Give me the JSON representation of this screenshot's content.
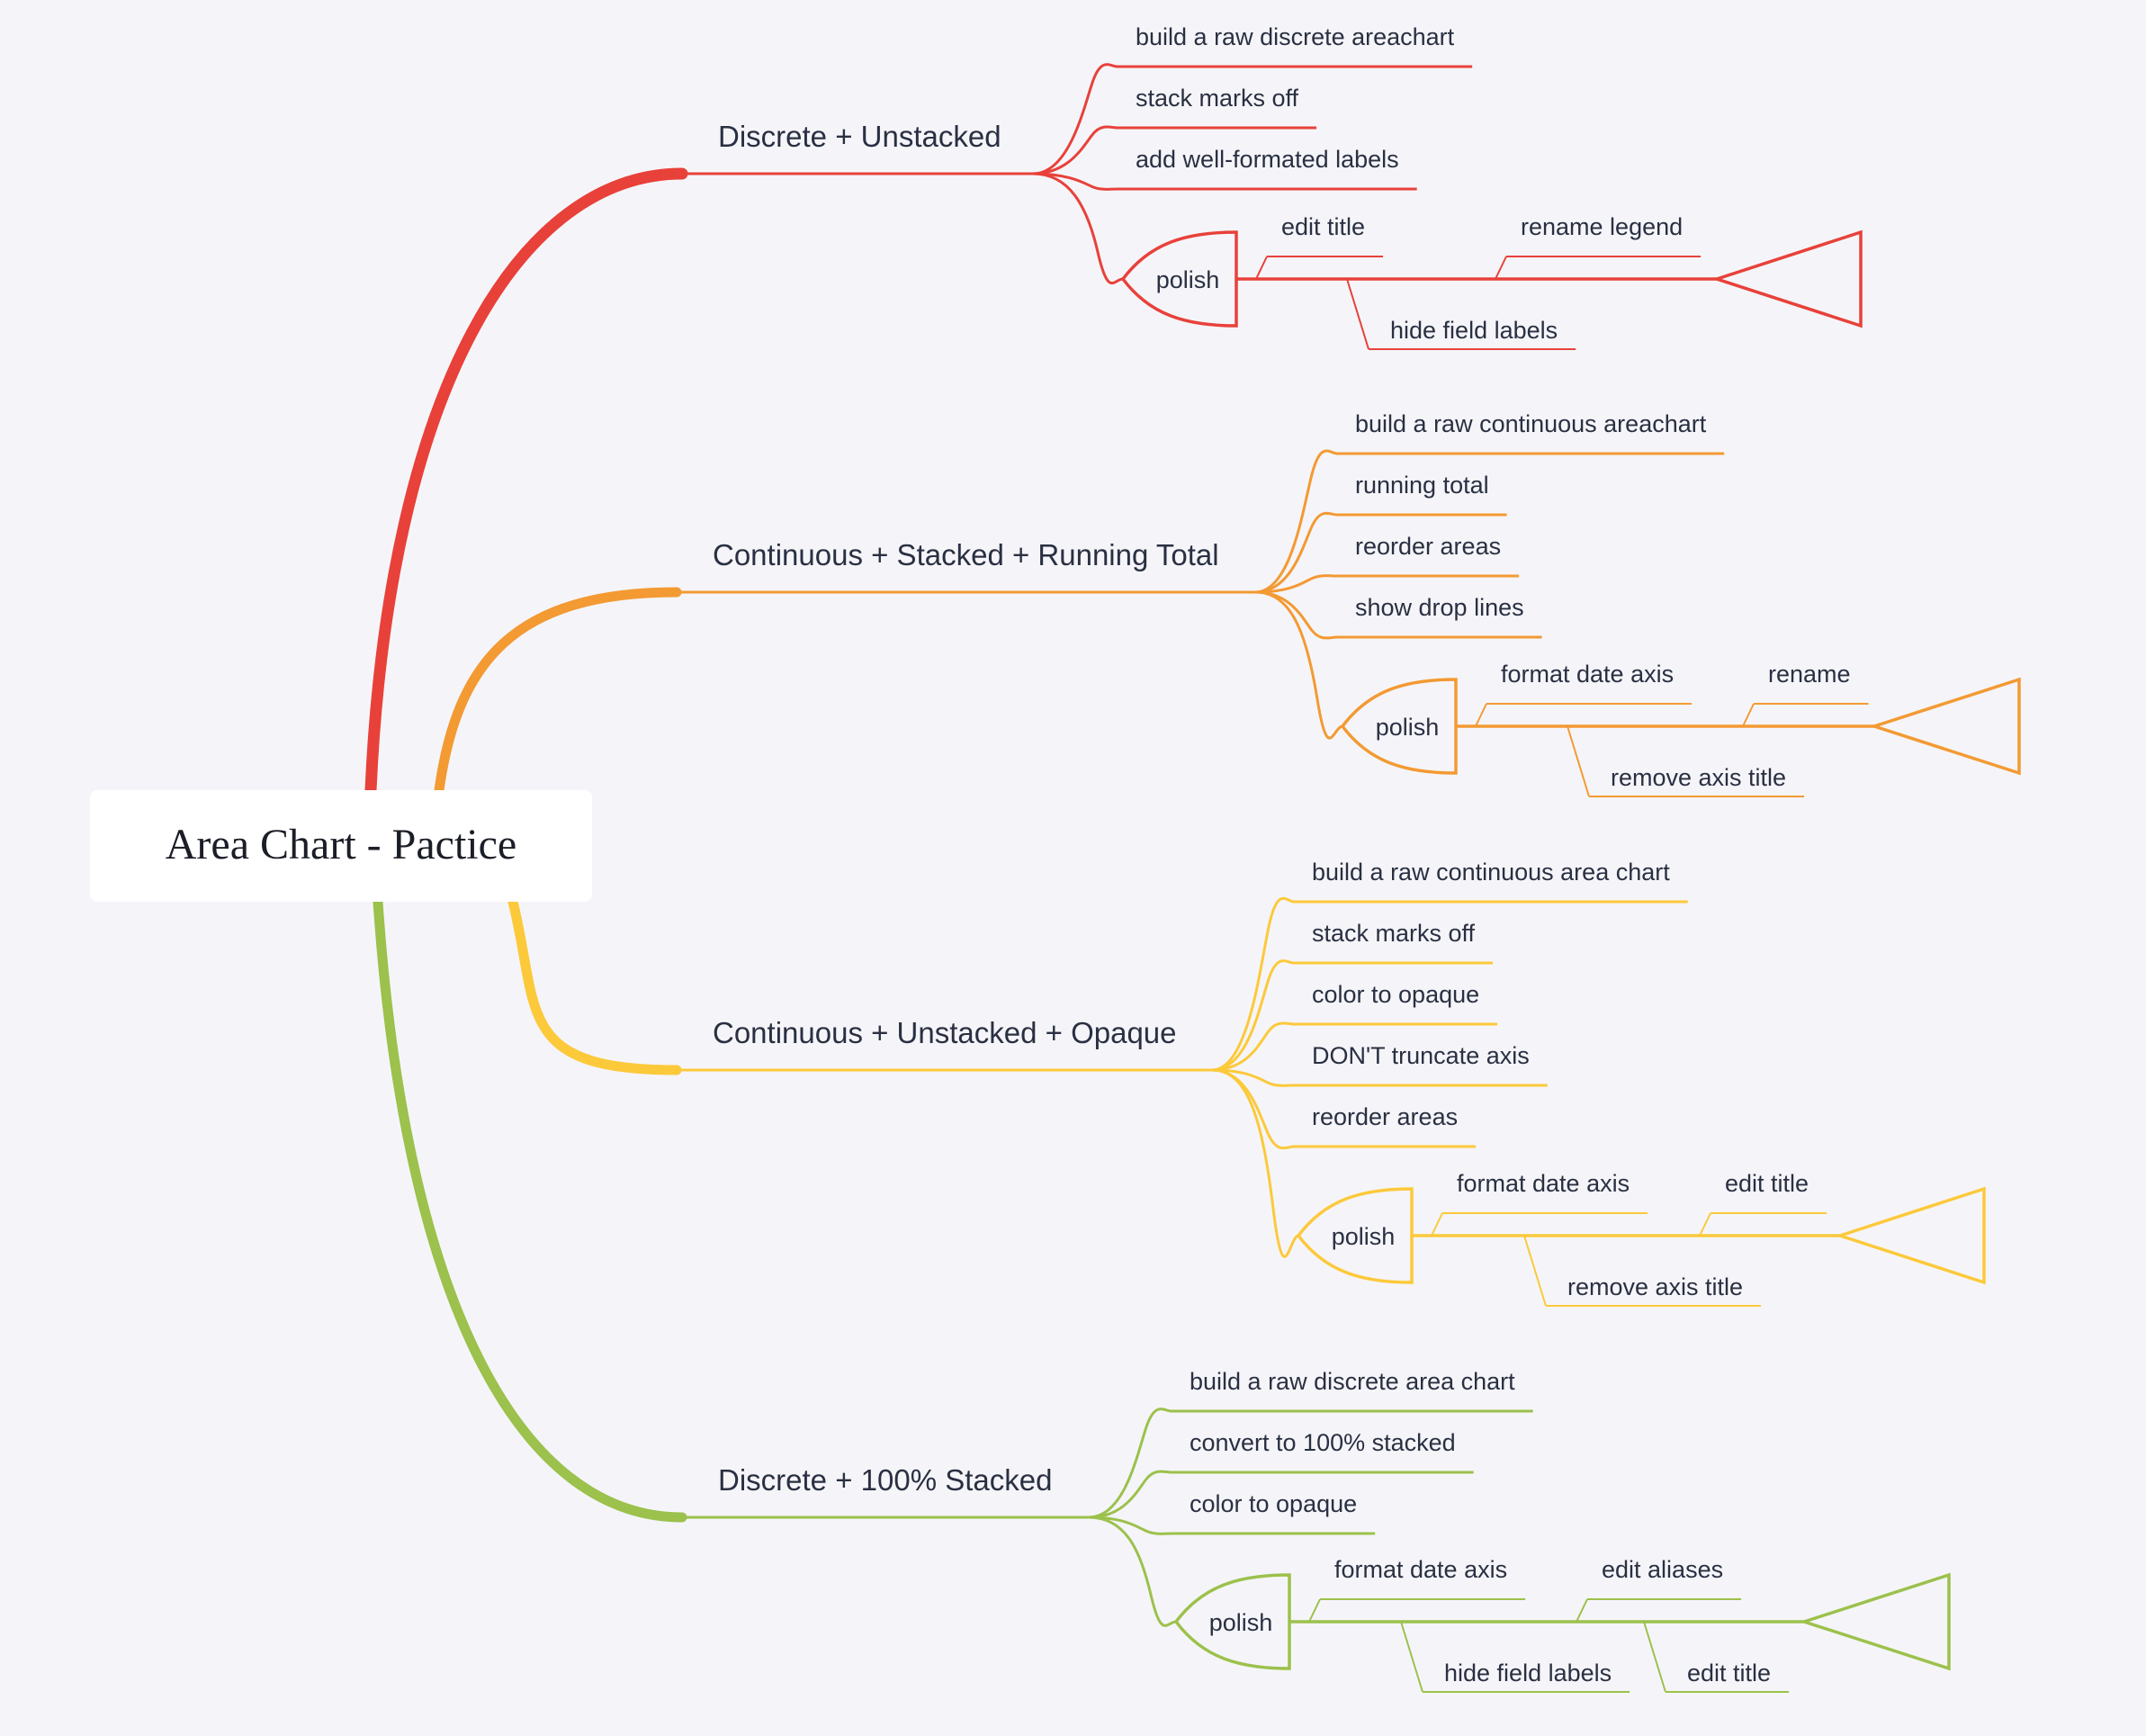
{
  "root": {
    "label": "Area Chart - Pactice"
  },
  "branches": [
    {
      "label": "Discrete + Unstacked",
      "color": "#e8413a",
      "items": [
        "build a raw discrete areachart",
        "stack marks off",
        "add well-formated labels"
      ],
      "polish": {
        "label": "polish",
        "upper": [
          "edit title",
          "rename legend"
        ],
        "lower": [
          "hide field labels"
        ]
      }
    },
    {
      "label": "Continuous + Stacked + Running Total",
      "color": "#f39a33",
      "items": [
        "build a raw continuous areachart",
        "running total",
        "reorder areas",
        "show drop lines"
      ],
      "polish": {
        "label": "polish",
        "upper": [
          "format date axis",
          "rename"
        ],
        "lower": [
          "remove axis title"
        ]
      }
    },
    {
      "label": "Continuous + Unstacked + Opaque",
      "color": "#fcc93b",
      "items": [
        "build a raw continuous area chart",
        "stack marks off",
        "color to opaque",
        "DON'T truncate axis",
        "reorder areas"
      ],
      "polish": {
        "label": "polish",
        "upper": [
          "format date axis",
          "edit title"
        ],
        "lower": [
          "remove axis title"
        ]
      }
    },
    {
      "label": "Discrete + 100% Stacked",
      "color": "#9cc14c",
      "items": [
        "build a raw discrete area chart",
        "convert to 100% stacked",
        "color to opaque"
      ],
      "polish": {
        "label": "polish",
        "upper": [
          "format date axis",
          "edit aliases"
        ],
        "lower": [
          "hide field labels",
          "edit title"
        ]
      }
    }
  ]
}
